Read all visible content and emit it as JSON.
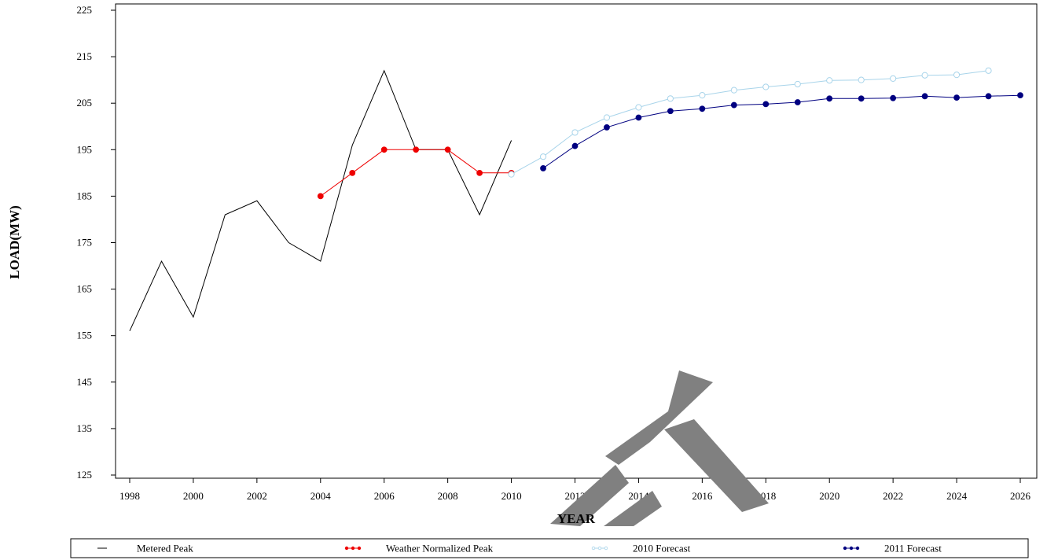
{
  "chart_data": {
    "type": "line",
    "title": "",
    "xlabel": "YEAR",
    "ylabel": "LOAD(MW)",
    "xlim": [
      1998,
      2026
    ],
    "ylim": [
      125,
      225
    ],
    "xticks": [
      1998,
      2000,
      2002,
      2004,
      2006,
      2008,
      2010,
      2012,
      2014,
      2016,
      2018,
      2020,
      2022,
      2024,
      2026
    ],
    "yticks": [
      125,
      135,
      145,
      155,
      165,
      175,
      185,
      195,
      205,
      215,
      225
    ],
    "grid": false,
    "legend_position": "bottom",
    "series": [
      {
        "name": "Metered Peak",
        "color": "#000000",
        "marker": "none",
        "x": [
          1998,
          1999,
          2000,
          2001,
          2002,
          2003,
          2004,
          2005,
          2006,
          2007,
          2008,
          2009,
          2010
        ],
        "y": [
          156,
          171,
          159,
          181,
          184,
          175,
          171,
          196,
          212,
          195,
          195,
          181,
          197
        ]
      },
      {
        "name": "Weather Normalized Peak",
        "color": "#ee0000",
        "marker": "filled-circle",
        "x": [
          2004,
          2005,
          2006,
          2007,
          2008,
          2009,
          2010
        ],
        "y": [
          185,
          190,
          195,
          195,
          195,
          190,
          190
        ]
      },
      {
        "name": "2010 Forecast",
        "color": "#a8d4ea",
        "marker": "open-circle",
        "x": [
          2010,
          2011,
          2012,
          2013,
          2014,
          2015,
          2016,
          2017,
          2018,
          2019,
          2020,
          2021,
          2022,
          2023,
          2024,
          2025
        ],
        "y": [
          189.7,
          193.5,
          198.7,
          201.9,
          204.1,
          206,
          206.7,
          207.8,
          208.5,
          209.1,
          209.9,
          210,
          210.3,
          211,
          211.1,
          212
        ]
      },
      {
        "name": "2011 Forecast",
        "color": "#000080",
        "marker": "filled-circle",
        "x": [
          2011,
          2012,
          2013,
          2014,
          2015,
          2016,
          2017,
          2018,
          2019,
          2020,
          2021,
          2022,
          2023,
          2024,
          2025,
          2026
        ],
        "y": [
          191,
          195.8,
          199.8,
          201.9,
          203.3,
          203.8,
          204.6,
          204.8,
          205.2,
          206,
          206,
          206.1,
          206.5,
          206.2,
          206.5,
          206.7
        ]
      }
    ],
    "watermark_color": "#808080"
  }
}
